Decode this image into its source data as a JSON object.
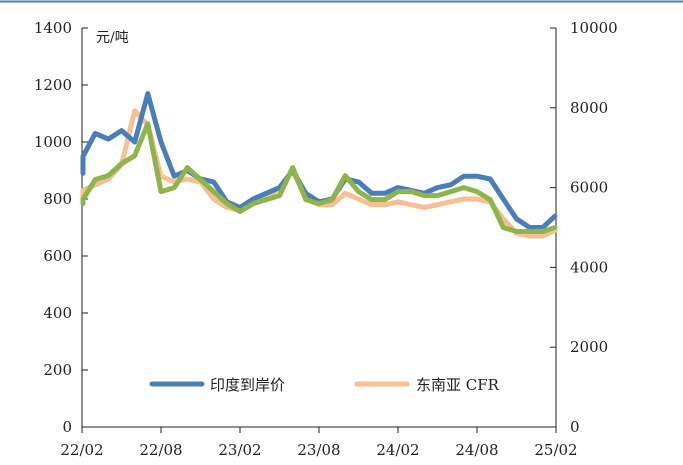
{
  "chart_data": {
    "type": "line",
    "title": "",
    "unit_label": "元/吨",
    "x_tick_labels": [
      "22/02",
      "22/08",
      "23/02",
      "23/08",
      "24/02",
      "24/08",
      "25/02"
    ],
    "y_left": {
      "ticks": [
        0,
        200,
        400,
        600,
        800,
        1000,
        1200,
        1400
      ],
      "lim": [
        0,
        1400
      ]
    },
    "y_right": {
      "ticks": [
        0,
        2000,
        4000,
        6000,
        8000,
        10000
      ],
      "lim": [
        0,
        10000
      ]
    },
    "grid": false,
    "legend_position": "bottom-center",
    "series": [
      {
        "name": "印度到岸价",
        "axis": "left",
        "color": "#4a7ebb",
        "x": [
          "22/01",
          "22/02",
          "22/03",
          "22/04",
          "22/05",
          "22/06",
          "22/07",
          "22/08",
          "22/09",
          "22/10",
          "22/11",
          "22/12",
          "23/01",
          "23/02",
          "23/03",
          "23/04",
          "23/05",
          "23/06",
          "23/07",
          "23/08",
          "23/09",
          "23/10",
          "23/11",
          "23/12",
          "24/01",
          "24/02",
          "24/03",
          "24/04",
          "24/05",
          "24/06",
          "24/07",
          "24/08",
          "24/09",
          "24/10",
          "24/11",
          "24/12",
          "25/01",
          "25/02"
        ],
        "values": [
          890,
          950,
          1030,
          1010,
          1040,
          1000,
          1170,
          1000,
          880,
          900,
          870,
          860,
          790,
          770,
          800,
          820,
          840,
          900,
          820,
          790,
          800,
          870,
          860,
          820,
          820,
          840,
          830,
          820,
          840,
          850,
          880,
          880,
          870,
          800,
          730,
          700,
          700,
          740
        ]
      },
      {
        "name": "东南亚 CFR",
        "axis": "left",
        "color": "#f7bf92",
        "x": [
          "22/01",
          "22/02",
          "22/03",
          "22/04",
          "22/05",
          "22/06",
          "22/07",
          "22/08",
          "22/09",
          "22/10",
          "22/11",
          "22/12",
          "23/01",
          "23/02",
          "23/03",
          "23/04",
          "23/05",
          "23/06",
          "23/07",
          "23/08",
          "23/09",
          "23/10",
          "23/11",
          "23/12",
          "24/01",
          "24/02",
          "24/03",
          "24/04",
          "24/05",
          "24/06",
          "24/07",
          "24/08",
          "24/09",
          "24/10",
          "24/11",
          "24/12",
          "25/01",
          "25/02"
        ],
        "values": [
          790,
          830,
          850,
          870,
          920,
          1110,
          1060,
          880,
          860,
          870,
          860,
          800,
          770,
          760,
          790,
          800,
          840,
          900,
          800,
          780,
          780,
          820,
          800,
          780,
          780,
          790,
          780,
          770,
          780,
          790,
          800,
          800,
          790,
          730,
          680,
          670,
          670,
          690
        ]
      },
      {
        "name": "",
        "axis": "right",
        "color": "#8db54a",
        "x": [
          "22/01",
          "22/02",
          "22/03",
          "22/04",
          "22/05",
          "22/06",
          "22/07",
          "22/08",
          "22/09",
          "22/10",
          "22/11",
          "22/12",
          "23/01",
          "23/02",
          "23/03",
          "23/04",
          "23/05",
          "23/06",
          "23/07",
          "23/08",
          "23/09",
          "23/10",
          "23/11",
          "23/12",
          "24/01",
          "24/02",
          "24/03",
          "24/04",
          "24/05",
          "24/06",
          "24/07",
          "24/08",
          "24/09",
          "24/10",
          "24/11",
          "24/12",
          "25/01",
          "25/02"
        ],
        "values": [
          5600,
          5700,
          6200,
          6300,
          6600,
          6800,
          7600,
          5900,
          6000,
          6500,
          6200,
          5900,
          5600,
          5400,
          5600,
          5700,
          5800,
          6500,
          5700,
          5600,
          5700,
          6300,
          5900,
          5700,
          5700,
          5900,
          5900,
          5800,
          5800,
          5900,
          6000,
          5900,
          5700,
          5000,
          4900,
          4900,
          4900,
          5000
        ]
      }
    ]
  }
}
